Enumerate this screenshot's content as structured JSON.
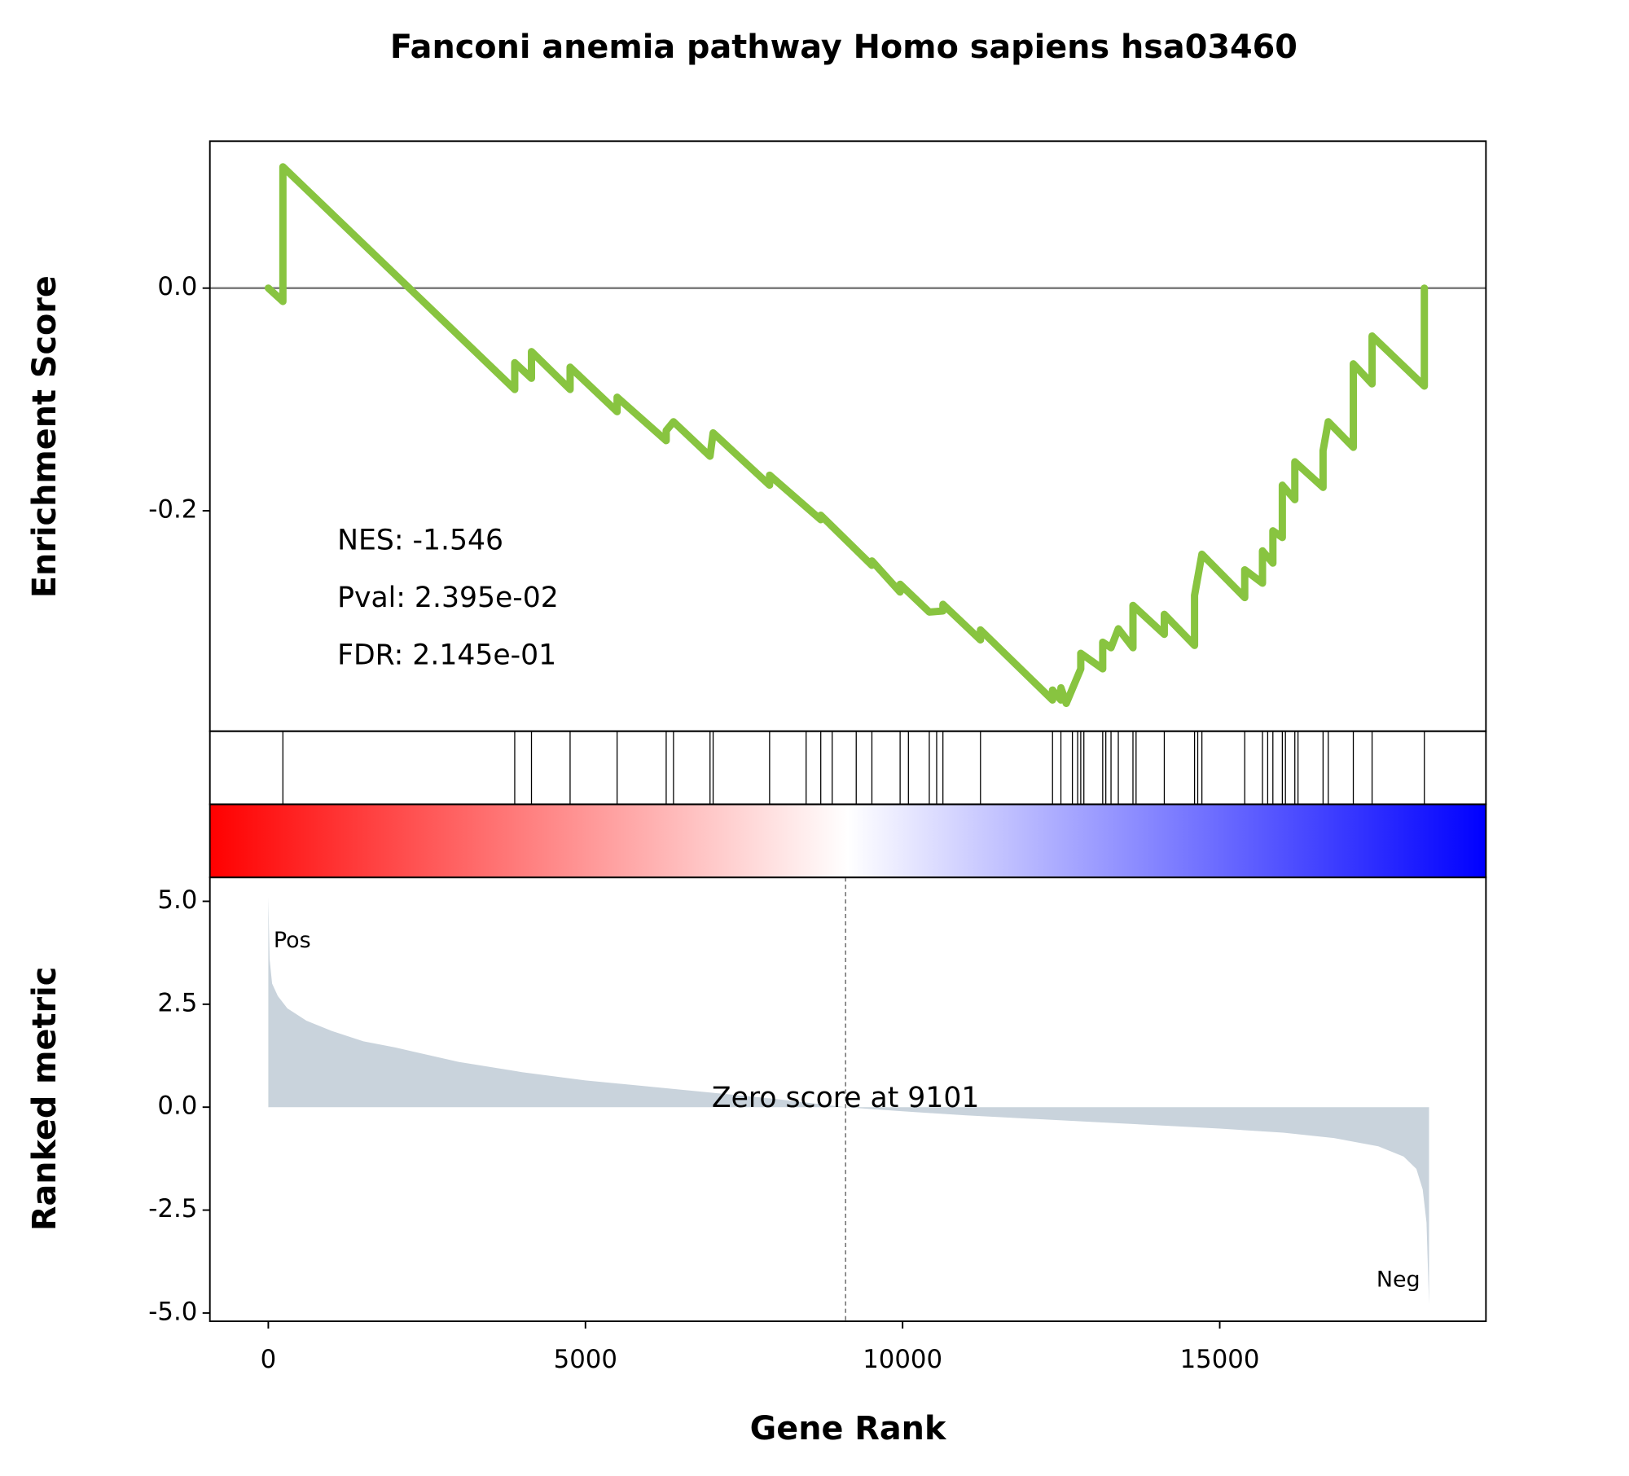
{
  "chart_data": [
    {
      "type": "line",
      "title": "Fanconi anemia pathway Homo sapiens hsa03460",
      "ylabel": "Enrichment Score",
      "x": [
        0,
        230,
        230,
        3885,
        3885,
        4149,
        4149,
        4758,
        4758,
        5499,
        5499,
        6273,
        6273,
        6388,
        6964,
        7013,
        7903,
        7903,
        8710,
        8710,
        9516,
        9516,
        9961,
        9961,
        10421,
        10636,
        10636,
        11228,
        11228,
        12364,
        12364,
        12496,
        12496,
        12580,
        12809,
        12809,
        13155,
        13155,
        13286,
        13401,
        13632,
        13632,
        14126,
        14126,
        14603,
        14603,
        14719,
        15394,
        15394,
        15674,
        15674,
        15838,
        15838,
        15987,
        15987,
        16184,
        16184,
        16629,
        16629,
        16711,
        17106,
        17106,
        17402,
        17402,
        18226,
        18226
      ],
      "values": [
        0,
        -0.012,
        0.109,
        -0.091,
        -0.067,
        -0.081,
        -0.057,
        -0.091,
        -0.071,
        -0.111,
        -0.098,
        -0.137,
        -0.128,
        -0.12,
        -0.151,
        -0.13,
        -0.177,
        -0.168,
        -0.208,
        -0.204,
        -0.249,
        -0.245,
        -0.273,
        -0.266,
        -0.291,
        -0.29,
        -0.284,
        -0.316,
        -0.307,
        -0.37,
        -0.361,
        -0.37,
        -0.359,
        -0.373,
        -0.342,
        -0.328,
        -0.342,
        -0.318,
        -0.323,
        -0.306,
        -0.323,
        -0.285,
        -0.311,
        -0.293,
        -0.321,
        -0.276,
        -0.239,
        -0.278,
        -0.253,
        -0.265,
        -0.236,
        -0.247,
        -0.218,
        -0.224,
        -0.177,
        -0.19,
        -0.156,
        -0.179,
        -0.146,
        -0.12,
        -0.143,
        -0.068,
        -0.086,
        -0.043,
        -0.088,
        0
      ],
      "color": "#88c440",
      "ylim": [
        -0.398,
        0.132
      ],
      "xlim": [
        -921,
        19197
      ],
      "yticks": [
        {
          "value": 0,
          "label": "0.0"
        },
        {
          "value": -0.2,
          "label": "-0.2"
        }
      ],
      "annotations": [
        "NES: -1.546",
        "Pval: 2.395e-02",
        "FDR: 2.145e-01"
      ],
      "hits": [
        230,
        3885,
        4149,
        4758,
        5499,
        6273,
        6388,
        6964,
        7013,
        7903,
        8479,
        8710,
        8890,
        9269,
        9516,
        9961,
        10092,
        10421,
        10537,
        10636,
        11228,
        12364,
        12496,
        12677,
        12760,
        12809,
        12858,
        13155,
        13204,
        13286,
        13401,
        13632,
        13681,
        14126,
        14603,
        14653,
        14719,
        15394,
        15674,
        15756,
        15838,
        15987,
        16036,
        16184,
        16234,
        16629,
        16711,
        17106,
        17402,
        18226
      ],
      "colormap": [
        "#ff0000",
        "#ffffff",
        "#0000ff"
      ]
    },
    {
      "type": "area",
      "xlabel": "Gene Rank",
      "ylabel": "Ranked metric",
      "x": [
        0,
        20,
        60,
        150,
        300,
        600,
        1000,
        1500,
        2000,
        3000,
        4000,
        5000,
        6000,
        7000,
        8000,
        9101,
        10000,
        11000,
        12000,
        13000,
        14000,
        15000,
        16000,
        16800,
        17500,
        17900,
        18100,
        18200,
        18260,
        18300
      ],
      "values": [
        5.1,
        3.6,
        3.0,
        2.7,
        2.4,
        2.1,
        1.85,
        1.6,
        1.45,
        1.1,
        0.85,
        0.65,
        0.5,
        0.35,
        0.2,
        0,
        -0.1,
        -0.2,
        -0.28,
        -0.36,
        -0.44,
        -0.52,
        -0.62,
        -0.75,
        -0.95,
        -1.2,
        -1.5,
        -2.0,
        -2.8,
        -4.8
      ],
      "color": "#c9d3dc",
      "ylim": [
        -5.2,
        5.58
      ],
      "xlim": [
        -921,
        19197
      ],
      "yticks": [
        {
          "value": 5,
          "label": "5.0"
        },
        {
          "value": 2.5,
          "label": "2.5"
        },
        {
          "value": 0,
          "label": "0.0"
        },
        {
          "value": -2.5,
          "label": "-2.5"
        },
        {
          "value": -5,
          "label": "-5.0"
        }
      ],
      "xticks": [
        0,
        5000,
        10000,
        15000
      ],
      "annotation": "Zero score at 9101",
      "zero_rank": 9101,
      "pos_label": "Pos",
      "pos_color": "#ff0000",
      "neg_label": "Neg",
      "neg_color": "#0000ff"
    }
  ]
}
